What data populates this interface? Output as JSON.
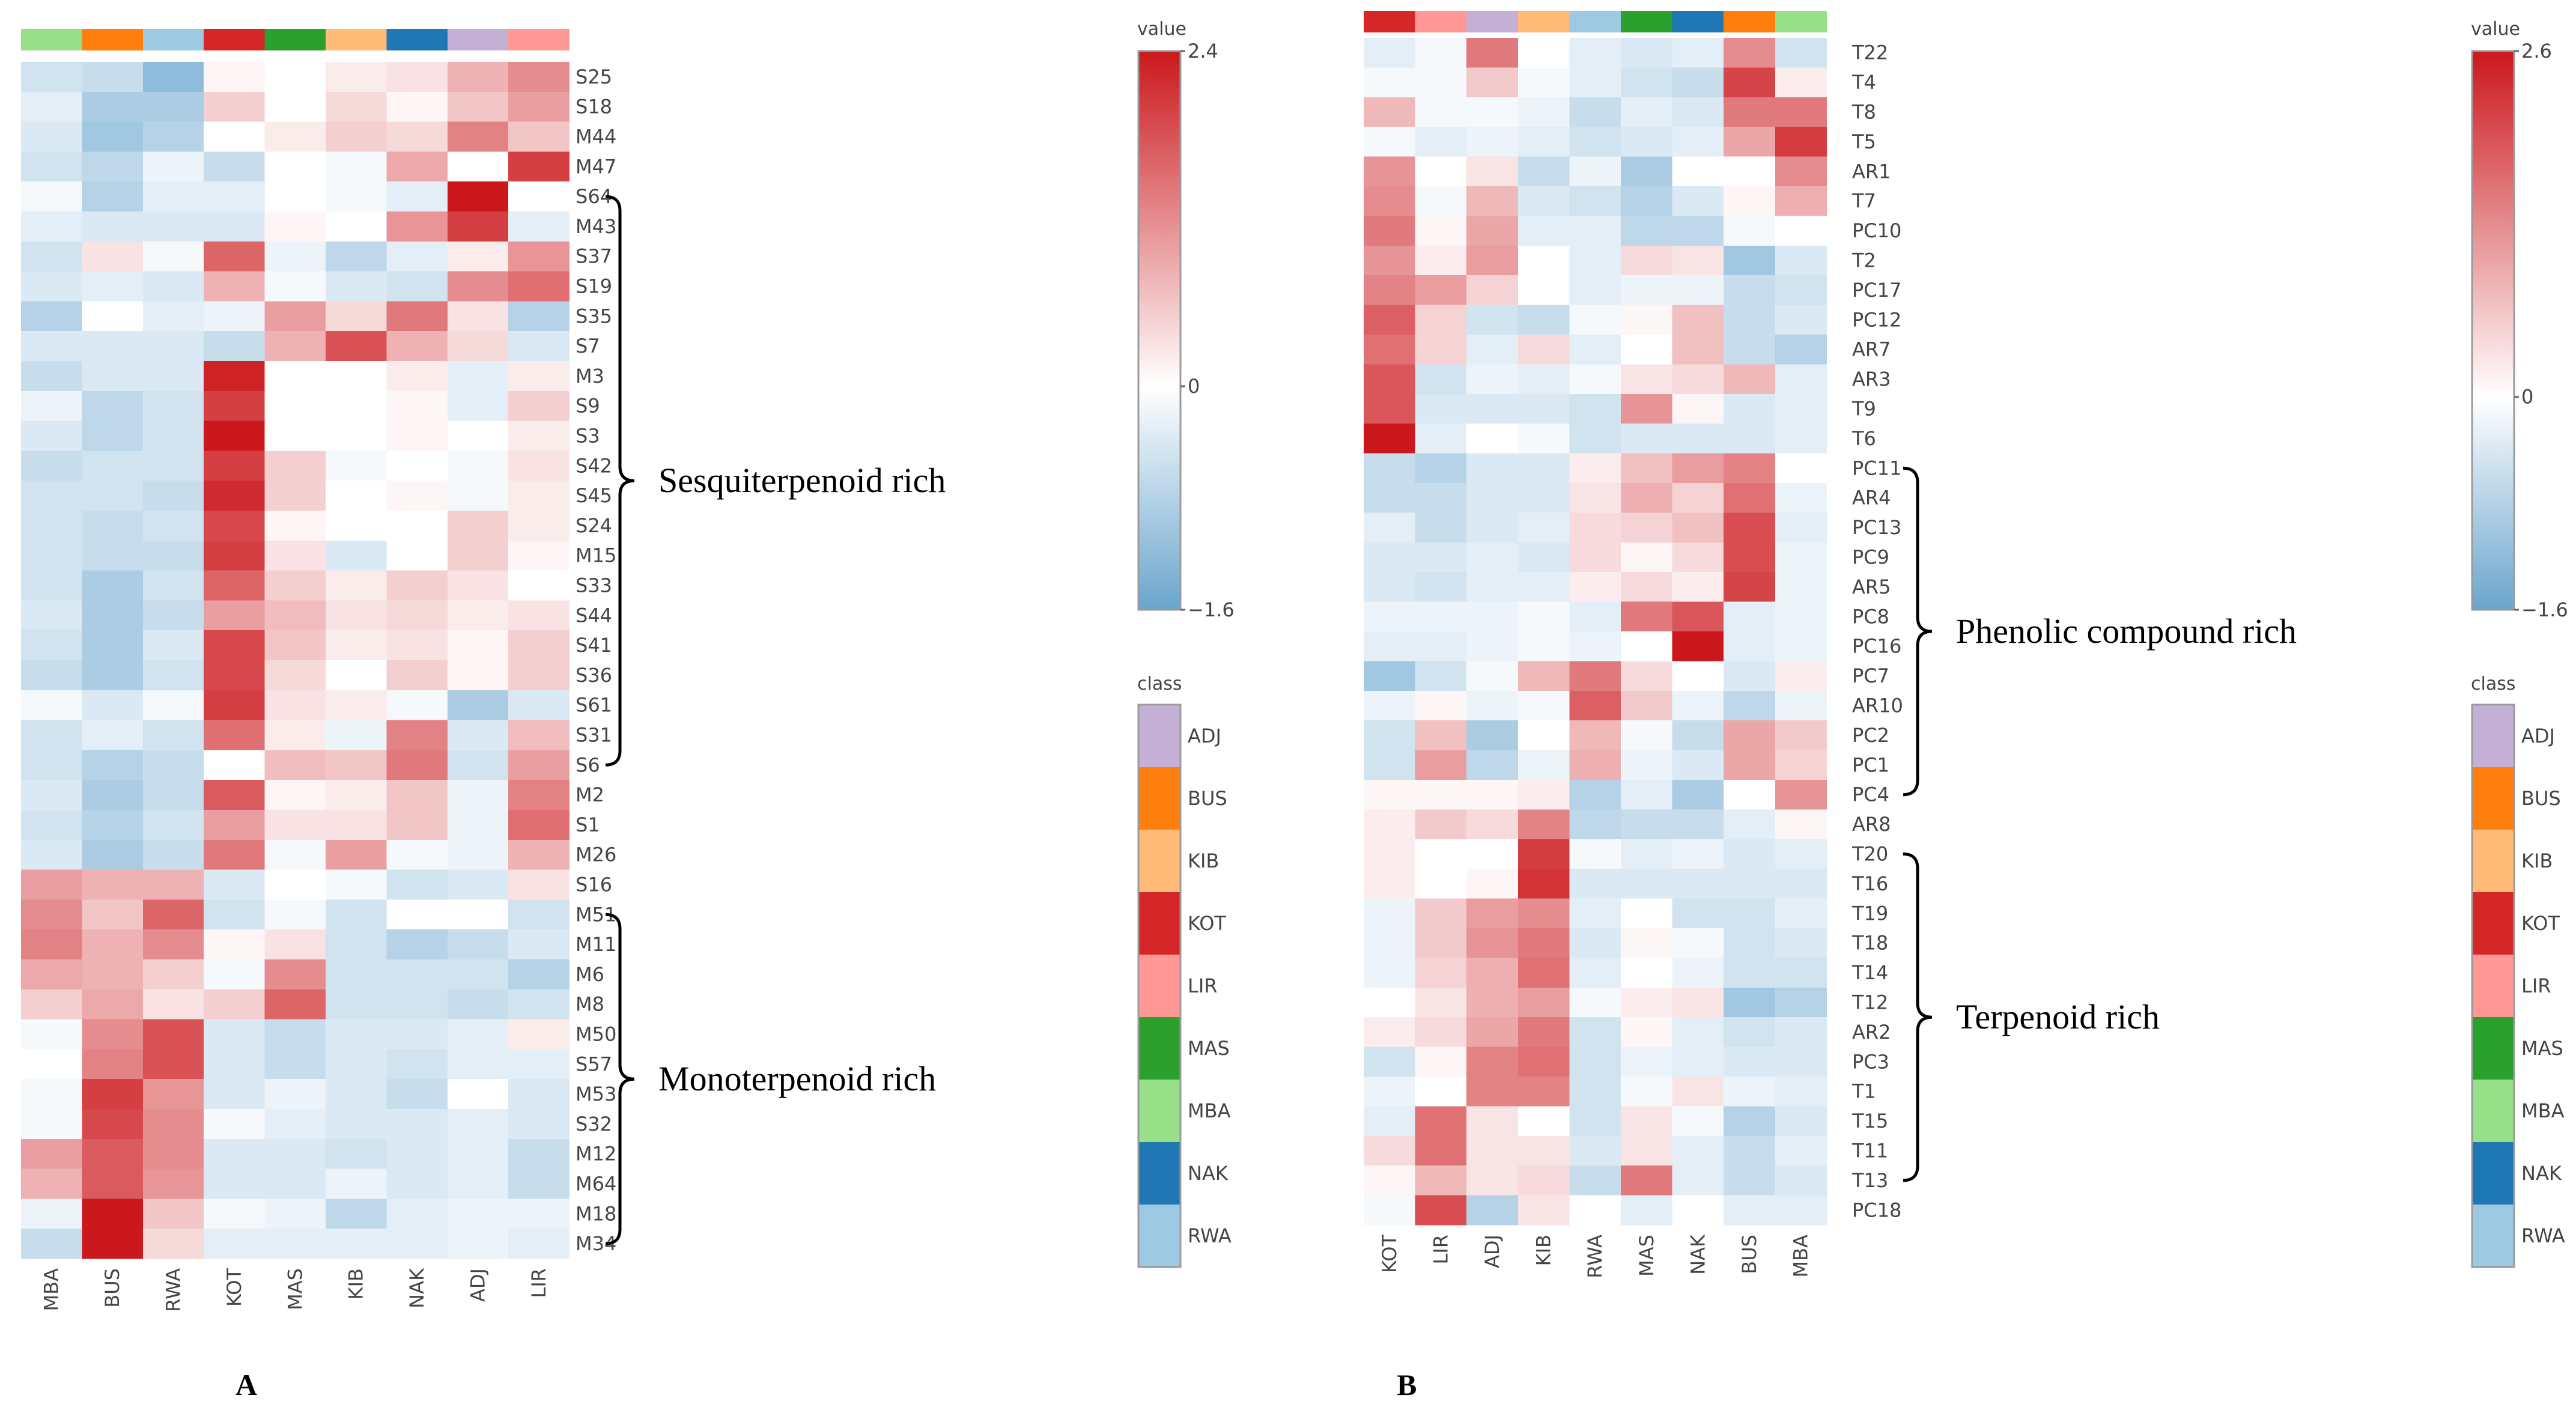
{
  "chart_data": [
    {
      "type": "heatmap",
      "panel_label": "A",
      "columns": [
        "MBA",
        "BUS",
        "RWA",
        "KOT",
        "MAS",
        "KIB",
        "NAK",
        "ADJ",
        "LIR"
      ],
      "rows": [
        "S25",
        "S18",
        "M44",
        "M47",
        "S64",
        "M43",
        "S37",
        "S19",
        "S35",
        "S7",
        "M3",
        "S9",
        "S3",
        "S42",
        "S45",
        "S24",
        "M15",
        "S33",
        "S44",
        "S41",
        "S36",
        "S61",
        "S31",
        "S6",
        "M2",
        "S1",
        "M26",
        "S16",
        "M51",
        "M11",
        "M6",
        "M8",
        "M50",
        "S57",
        "M53",
        "S32",
        "M12",
        "M64",
        "M18",
        "M34"
      ],
      "values": [
        [
          -0.5,
          -0.6,
          -1.2,
          0.1,
          0.0,
          0.2,
          0.3,
          0.8,
          1.2
        ],
        [
          -0.3,
          -0.9,
          -0.9,
          0.5,
          0.0,
          0.4,
          0.1,
          0.6,
          1.0
        ],
        [
          -0.4,
          -1.0,
          -0.8,
          0.0,
          0.2,
          0.5,
          0.4,
          1.3,
          0.6
        ],
        [
          -0.5,
          -0.7,
          -0.2,
          -0.6,
          0.0,
          -0.1,
          0.9,
          0.0,
          2.0
        ],
        [
          -0.1,
          -0.8,
          -0.3,
          -0.3,
          0.0,
          -0.1,
          -0.3,
          2.4,
          0.0
        ],
        [
          -0.3,
          -0.4,
          -0.4,
          -0.4,
          0.1,
          0.0,
          1.1,
          2.0,
          -0.3
        ],
        [
          -0.5,
          0.3,
          -0.1,
          1.6,
          -0.2,
          -0.7,
          -0.3,
          0.2,
          1.1
        ],
        [
          -0.4,
          -0.3,
          -0.4,
          0.8,
          -0.1,
          -0.4,
          -0.5,
          1.2,
          1.5
        ],
        [
          -0.8,
          0.0,
          -0.3,
          -0.2,
          1.0,
          0.4,
          1.4,
          0.3,
          -0.8
        ],
        [
          -0.4,
          -0.4,
          -0.4,
          -0.6,
          0.8,
          1.8,
          0.8,
          0.4,
          -0.4
        ],
        [
          -0.6,
          -0.4,
          -0.4,
          2.3,
          0.0,
          0.0,
          0.2,
          -0.3,
          0.2
        ],
        [
          -0.2,
          -0.7,
          -0.5,
          2.0,
          0.0,
          0.0,
          0.1,
          -0.3,
          0.5
        ],
        [
          -0.4,
          -0.7,
          -0.5,
          2.4,
          0.0,
          0.0,
          0.1,
          0.0,
          0.2
        ],
        [
          -0.6,
          -0.5,
          -0.5,
          2.0,
          0.5,
          -0.1,
          0.0,
          -0.1,
          0.3
        ],
        [
          -0.5,
          -0.5,
          -0.6,
          2.2,
          0.5,
          0.0,
          0.1,
          -0.1,
          0.2
        ],
        [
          -0.5,
          -0.6,
          -0.5,
          1.9,
          0.1,
          0.0,
          0.0,
          0.5,
          0.2
        ],
        [
          -0.5,
          -0.6,
          -0.6,
          2.0,
          0.3,
          -0.4,
          0.0,
          0.5,
          0.1
        ],
        [
          -0.5,
          -0.9,
          -0.5,
          1.6,
          0.5,
          0.2,
          0.5,
          0.3,
          0.0
        ],
        [
          -0.4,
          -0.9,
          -0.6,
          1.0,
          0.7,
          0.3,
          0.4,
          0.2,
          0.3
        ],
        [
          -0.5,
          -0.9,
          -0.4,
          1.9,
          0.6,
          0.2,
          0.3,
          0.1,
          0.5
        ],
        [
          -0.6,
          -0.9,
          -0.5,
          1.9,
          0.4,
          0.0,
          0.5,
          0.1,
          0.5
        ],
        [
          -0.1,
          -0.4,
          -0.1,
          2.0,
          0.3,
          0.2,
          -0.1,
          -0.9,
          -0.4
        ],
        [
          -0.5,
          -0.3,
          -0.5,
          1.5,
          0.2,
          -0.2,
          1.3,
          -0.4,
          0.7
        ],
        [
          -0.5,
          -0.8,
          -0.6,
          0.0,
          0.7,
          0.6,
          1.4,
          -0.5,
          1.0
        ],
        [
          -0.4,
          -0.9,
          -0.6,
          1.7,
          0.1,
          0.2,
          0.6,
          -0.2,
          1.3
        ],
        [
          -0.5,
          -0.8,
          -0.5,
          1.0,
          0.3,
          0.3,
          0.6,
          -0.2,
          1.5
        ],
        [
          -0.4,
          -0.9,
          -0.6,
          1.4,
          -0.1,
          1.0,
          -0.1,
          -0.2,
          0.8
        ],
        [
          1.0,
          0.8,
          0.8,
          -0.4,
          0.0,
          -0.1,
          -0.5,
          -0.4,
          0.3
        ],
        [
          1.2,
          0.6,
          1.6,
          -0.5,
          -0.1,
          -0.5,
          0.0,
          0.0,
          -0.5
        ],
        [
          1.3,
          0.8,
          1.2,
          0.1,
          0.3,
          -0.5,
          -0.8,
          -0.6,
          -0.4
        ],
        [
          0.9,
          0.8,
          0.5,
          -0.1,
          1.2,
          -0.5,
          -0.5,
          -0.5,
          -0.8
        ],
        [
          0.5,
          0.9,
          0.3,
          0.5,
          1.6,
          -0.5,
          -0.5,
          -0.6,
          -0.5
        ],
        [
          -0.1,
          1.2,
          1.8,
          -0.4,
          -0.6,
          -0.4,
          -0.4,
          -0.3,
          0.2
        ],
        [
          0.0,
          1.3,
          1.8,
          -0.4,
          -0.6,
          -0.4,
          -0.5,
          -0.3,
          -0.3
        ],
        [
          -0.1,
          2.0,
          1.1,
          -0.4,
          -0.2,
          -0.4,
          -0.6,
          0.0,
          -0.4
        ],
        [
          -0.1,
          1.9,
          1.2,
          -0.1,
          -0.3,
          -0.4,
          -0.4,
          -0.3,
          -0.4
        ],
        [
          1.0,
          1.7,
          1.2,
          -0.4,
          -0.4,
          -0.5,
          -0.4,
          -0.3,
          -0.6
        ],
        [
          0.8,
          1.7,
          1.1,
          -0.4,
          -0.4,
          -0.2,
          -0.4,
          -0.3,
          -0.6
        ],
        [
          -0.2,
          2.4,
          0.6,
          -0.1,
          -0.2,
          -0.7,
          -0.3,
          -0.2,
          -0.2
        ],
        [
          -0.6,
          2.4,
          0.4,
          -0.3,
          -0.3,
          -0.3,
          -0.3,
          -0.2,
          -0.3
        ]
      ],
      "colorbar": {
        "title": "value",
        "min": -1.6,
        "max": 2.4,
        "ticks": [
          "2.4",
          "0",
          "−1.6"
        ]
      },
      "groups": [
        {
          "label": "Sesquiterpenoid rich",
          "from": "S64",
          "to": "S6"
        },
        {
          "label": "Monoterpenoid rich",
          "from": "M51",
          "to": "M34"
        }
      ],
      "legend": {
        "title": "class",
        "placement": "right"
      }
    },
    {
      "type": "heatmap",
      "panel_label": "B",
      "columns": [
        "KOT",
        "LIR",
        "ADJ",
        "KIB",
        "RWA",
        "MAS",
        "NAK",
        "BUS",
        "MBA"
      ],
      "rows": [
        "T22",
        "T4",
        "T8",
        "T5",
        "AR1",
        "T7",
        "PC10",
        "T2",
        "PC17",
        "PC12",
        "AR7",
        "AR3",
        "T9",
        "T6",
        "PC11",
        "AR4",
        "PC13",
        "PC9",
        "AR5",
        "PC8",
        "PC16",
        "PC7",
        "AR10",
        "PC2",
        "PC1",
        "PC4",
        "AR8",
        "T20",
        "T16",
        "T19",
        "T18",
        "T14",
        "T12",
        "AR2",
        "PC3",
        "T1",
        "T15",
        "T11",
        "T13",
        "PC18"
      ],
      "values": [
        [
          -0.3,
          -0.1,
          1.5,
          0.0,
          -0.3,
          -0.4,
          -0.3,
          1.3,
          -0.5
        ],
        [
          -0.1,
          -0.1,
          0.6,
          -0.1,
          -0.3,
          -0.5,
          -0.6,
          2.1,
          0.2
        ],
        [
          0.8,
          -0.1,
          -0.1,
          -0.2,
          -0.6,
          -0.3,
          -0.4,
          1.5,
          1.5
        ],
        [
          -0.1,
          -0.3,
          -0.2,
          -0.3,
          -0.5,
          -0.4,
          -0.3,
          1.0,
          2.2
        ],
        [
          1.2,
          0.0,
          0.3,
          -0.6,
          -0.2,
          -0.9,
          0.0,
          0.0,
          1.3
        ],
        [
          1.3,
          -0.1,
          0.8,
          -0.4,
          -0.5,
          -0.8,
          -0.4,
          0.1,
          0.9
        ],
        [
          1.5,
          0.1,
          1.0,
          -0.3,
          -0.3,
          -0.7,
          -0.7,
          -0.1,
          0.0
        ],
        [
          1.2,
          0.2,
          1.1,
          0.0,
          -0.3,
          0.4,
          0.3,
          -1.0,
          -0.4
        ],
        [
          1.4,
          1.1,
          0.5,
          0.0,
          -0.3,
          -0.2,
          -0.2,
          -0.6,
          -0.5
        ],
        [
          1.8,
          0.5,
          -0.5,
          -0.6,
          -0.1,
          0.1,
          0.7,
          -0.6,
          -0.4
        ],
        [
          1.6,
          0.5,
          -0.3,
          0.4,
          -0.3,
          0.0,
          0.7,
          -0.6,
          -0.8
        ],
        [
          1.9,
          -0.5,
          -0.2,
          -0.3,
          -0.1,
          0.3,
          0.4,
          0.8,
          -0.3
        ],
        [
          1.9,
          -0.4,
          -0.4,
          -0.4,
          -0.5,
          1.2,
          0.1,
          -0.4,
          -0.3
        ],
        [
          2.6,
          -0.3,
          0.0,
          -0.1,
          -0.5,
          -0.4,
          -0.4,
          -0.4,
          -0.3
        ],
        [
          -0.6,
          -0.8,
          -0.4,
          -0.4,
          0.2,
          0.7,
          1.1,
          1.4,
          0.0
        ],
        [
          -0.6,
          -0.6,
          -0.4,
          -0.4,
          0.3,
          0.9,
          0.5,
          1.6,
          -0.2
        ],
        [
          -0.3,
          -0.6,
          -0.4,
          -0.3,
          0.4,
          0.5,
          0.7,
          2.0,
          -0.3
        ],
        [
          -0.4,
          -0.4,
          -0.3,
          -0.4,
          0.4,
          0.1,
          0.4,
          2.0,
          -0.2
        ],
        [
          -0.4,
          -0.5,
          -0.3,
          -0.3,
          0.2,
          0.4,
          0.2,
          2.1,
          -0.2
        ],
        [
          -0.2,
          -0.2,
          -0.2,
          -0.1,
          -0.3,
          1.5,
          1.9,
          -0.3,
          -0.2
        ],
        [
          -0.3,
          -0.3,
          -0.2,
          -0.1,
          -0.2,
          0.0,
          2.6,
          -0.3,
          -0.2
        ],
        [
          -1.0,
          -0.5,
          -0.1,
          0.8,
          1.5,
          0.4,
          0.0,
          -0.4,
          0.2
        ],
        [
          -0.2,
          0.1,
          -0.2,
          -0.1,
          1.8,
          0.6,
          -0.2,
          -0.7,
          -0.2
        ],
        [
          -0.5,
          0.7,
          -0.9,
          0.0,
          0.8,
          -0.1,
          -0.6,
          1.0,
          0.6
        ],
        [
          -0.5,
          1.1,
          -0.7,
          -0.2,
          0.9,
          -0.2,
          -0.4,
          1.0,
          0.5
        ],
        [
          0.1,
          0.1,
          0.1,
          0.2,
          -0.8,
          -0.3,
          -0.9,
          0.0,
          1.2
        ],
        [
          0.2,
          0.6,
          0.4,
          1.4,
          -0.7,
          -0.6,
          -0.6,
          -0.3,
          0.1
        ],
        [
          0.2,
          0.0,
          0.0,
          2.2,
          -0.1,
          -0.3,
          -0.2,
          -0.4,
          -0.3
        ],
        [
          0.2,
          0.0,
          0.1,
          2.3,
          -0.4,
          -0.4,
          -0.4,
          -0.4,
          -0.4
        ],
        [
          -0.2,
          0.6,
          1.1,
          1.3,
          -0.3,
          0.0,
          -0.5,
          -0.5,
          -0.3
        ],
        [
          -0.2,
          0.6,
          1.2,
          1.5,
          -0.4,
          0.1,
          -0.1,
          -0.5,
          -0.4
        ],
        [
          -0.2,
          0.5,
          0.9,
          1.6,
          -0.3,
          0.0,
          -0.2,
          -0.5,
          -0.5
        ],
        [
          0.0,
          0.3,
          0.9,
          1.1,
          -0.1,
          0.2,
          0.3,
          -1.0,
          -0.8
        ],
        [
          0.2,
          0.4,
          1.0,
          1.5,
          -0.5,
          0.1,
          -0.3,
          -0.5,
          -0.4
        ],
        [
          -0.5,
          0.1,
          1.4,
          1.6,
          -0.5,
          -0.2,
          -0.3,
          -0.4,
          -0.4
        ],
        [
          -0.2,
          0.0,
          1.4,
          1.4,
          -0.5,
          -0.1,
          0.3,
          -0.2,
          -0.3
        ],
        [
          -0.3,
          1.6,
          0.3,
          0.0,
          -0.5,
          0.3,
          -0.1,
          -0.8,
          -0.4
        ],
        [
          0.4,
          1.6,
          0.3,
          0.3,
          -0.4,
          0.3,
          -0.3,
          -0.6,
          -0.3
        ],
        [
          0.1,
          0.8,
          0.3,
          0.4,
          -0.6,
          1.5,
          -0.3,
          -0.6,
          -0.4
        ],
        [
          -0.1,
          2.0,
          -0.8,
          0.3,
          0.0,
          -0.3,
          0.0,
          -0.3,
          -0.3
        ]
      ],
      "colorbar": {
        "title": "value",
        "min": -1.6,
        "max": 2.6,
        "ticks": [
          "2.6",
          "0",
          "−1.6"
        ]
      },
      "groups": [
        {
          "label": "Phenolic compound rich",
          "from": "PC11",
          "to": "PC4"
        },
        {
          "label": "Terpenoid  rich",
          "from": "T20",
          "to": "T13"
        }
      ],
      "legend": {
        "title": "class",
        "placement": "right"
      }
    }
  ],
  "class_legend": [
    "ADJ",
    "BUS",
    "KIB",
    "KOT",
    "LIR",
    "MAS",
    "MBA",
    "NAK",
    "RWA"
  ],
  "class_colors": {
    "ADJ": "#c5b0d5",
    "BUS": "#ff7f0e",
    "KIB": "#ffbb78",
    "KOT": "#d62728",
    "LIR": "#ff9896",
    "MAS": "#2ca02c",
    "MBA": "#98df8a",
    "NAK": "#1f77b4",
    "RWA": "#9ec9e2"
  },
  "color_scale": {
    "low": "#6aa5cd",
    "mid": "#ffffff",
    "high": "#cb181d"
  }
}
